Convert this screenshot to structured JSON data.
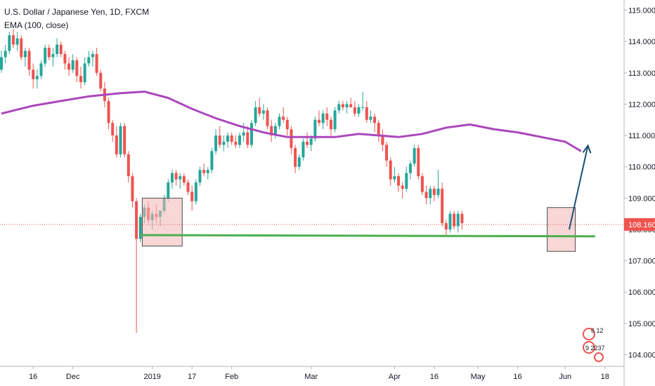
{
  "header": {
    "title": "U.S. Dollar / Japanese Yen, 1D, FXCM",
    "indicator": "EMA (100, close)"
  },
  "colors": {
    "up": "#26a69a",
    "down": "#ef5350",
    "ema": "#ab47bc",
    "support": "#4caf50",
    "arrow": "#1a5276",
    "box_fill": "#f4b6b6",
    "box_stroke": "#4a4a4a",
    "price_line": "#ef5350",
    "price_tag": "#ef5350"
  },
  "watermark": {
    "line1": "6  12",
    "line2": "9 2237"
  },
  "chart_data": {
    "type": "candlestick",
    "title": "U.S. Dollar / Japanese Yen, 1D, FXCM",
    "ylim": [
      103.8,
      115.3
    ],
    "y_ticks": [
      "115.000",
      "114.000",
      "113.000",
      "112.000",
      "111.000",
      "110.000",
      "109.000",
      "108.000",
      "107.000",
      "106.000",
      "105.000",
      "104.000"
    ],
    "x_ticks": [
      {
        "label": "16",
        "day": 8
      },
      {
        "label": "Dec",
        "day": 18
      },
      {
        "label": "2019",
        "day": 38
      },
      {
        "label": "17",
        "day": 48
      },
      {
        "label": "Feb",
        "day": 58
      },
      {
        "label": "Mar",
        "day": 78
      },
      {
        "label": "Apr",
        "day": 99
      },
      {
        "label": "16",
        "day": 109
      },
      {
        "label": "May",
        "day": 120
      },
      {
        "label": "16",
        "day": 130
      },
      {
        "label": "Jun",
        "day": 142
      },
      {
        "label": "18",
        "day": 152
      }
    ],
    "current_price": "108.160",
    "candles": [
      [
        113.1,
        113.7,
        113.0,
        113.5
      ],
      [
        113.5,
        113.9,
        113.3,
        113.7
      ],
      [
        113.7,
        114.3,
        113.6,
        114.2
      ],
      [
        114.2,
        114.4,
        113.8,
        113.9
      ],
      [
        113.9,
        114.3,
        113.7,
        114.1
      ],
      [
        114.1,
        114.2,
        113.4,
        113.5
      ],
      [
        113.5,
        113.8,
        113.2,
        113.7
      ],
      [
        113.7,
        113.8,
        112.9,
        113.1
      ],
      [
        113.1,
        113.3,
        112.5,
        112.8
      ],
      [
        112.8,
        113.1,
        112.5,
        112.9
      ],
      [
        112.9,
        113.4,
        112.8,
        113.3
      ],
      [
        113.3,
        113.9,
        113.2,
        113.8
      ],
      [
        113.8,
        113.9,
        113.4,
        113.5
      ],
      [
        113.5,
        113.8,
        113.2,
        113.6
      ],
      [
        113.6,
        114.1,
        113.5,
        113.9
      ],
      [
        113.9,
        114.0,
        113.5,
        113.6
      ],
      [
        113.6,
        113.7,
        113.1,
        113.3
      ],
      [
        113.3,
        113.5,
        112.9,
        113.1
      ],
      [
        113.1,
        113.6,
        113.0,
        113.4
      ],
      [
        113.4,
        113.5,
        112.7,
        112.9
      ],
      [
        112.9,
        113.2,
        112.5,
        112.7
      ],
      [
        112.7,
        113.5,
        112.6,
        113.3
      ],
      [
        113.3,
        113.7,
        113.2,
        113.5
      ],
      [
        113.5,
        113.7,
        113.2,
        113.6
      ],
      [
        113.6,
        113.8,
        112.9,
        113.0
      ],
      [
        113.0,
        113.1,
        112.4,
        112.5
      ],
      [
        112.5,
        112.7,
        111.9,
        112.1
      ],
      [
        112.1,
        112.2,
        111.2,
        111.4
      ],
      [
        111.4,
        111.5,
        110.8,
        111.0
      ],
      [
        111.0,
        111.3,
        110.3,
        110.4
      ],
      [
        110.4,
        111.4,
        110.3,
        111.3
      ],
      [
        111.3,
        111.4,
        110.3,
        110.4
      ],
      [
        110.4,
        110.5,
        109.5,
        109.7
      ],
      [
        109.7,
        109.8,
        108.7,
        108.9
      ],
      [
        108.9,
        109.0,
        104.7,
        107.7
      ],
      [
        107.7,
        108.5,
        107.6,
        108.4
      ],
      [
        108.4,
        108.8,
        108.2,
        108.7
      ],
      [
        108.7,
        108.9,
        108.2,
        108.3
      ],
      [
        108.3,
        108.6,
        108.0,
        108.5
      ],
      [
        108.5,
        108.8,
        108.2,
        108.4
      ],
      [
        108.4,
        108.6,
        108.1,
        108.6
      ],
      [
        108.6,
        109.1,
        108.5,
        109.0
      ],
      [
        109.0,
        109.6,
        108.9,
        109.5
      ],
      [
        109.5,
        109.9,
        109.3,
        109.8
      ],
      [
        109.8,
        109.9,
        109.4,
        109.6
      ],
      [
        109.6,
        109.8,
        109.3,
        109.7
      ],
      [
        109.7,
        109.8,
        109.4,
        109.5
      ],
      [
        109.5,
        109.6,
        109.1,
        109.2
      ],
      [
        109.2,
        109.4,
        108.6,
        108.9
      ],
      [
        108.9,
        109.6,
        108.8,
        109.5
      ],
      [
        109.5,
        110.0,
        109.4,
        109.9
      ],
      [
        109.9,
        110.1,
        109.7,
        109.8
      ],
      [
        109.8,
        110.0,
        109.6,
        109.9
      ],
      [
        109.9,
        110.6,
        109.8,
        110.5
      ],
      [
        110.5,
        111.2,
        110.4,
        111.0
      ],
      [
        111.0,
        111.3,
        110.6,
        110.7
      ],
      [
        110.7,
        111.0,
        110.5,
        110.8
      ],
      [
        110.8,
        111.1,
        110.6,
        111.0
      ],
      [
        111.0,
        111.1,
        110.7,
        110.8
      ],
      [
        110.8,
        111.0,
        110.6,
        110.7
      ],
      [
        110.7,
        111.1,
        110.6,
        111.0
      ],
      [
        111.0,
        111.4,
        110.8,
        111.1
      ],
      [
        111.1,
        111.3,
        110.6,
        110.7
      ],
      [
        110.7,
        111.5,
        110.6,
        111.4
      ],
      [
        111.4,
        112.1,
        111.3,
        111.9
      ],
      [
        111.9,
        112.2,
        111.6,
        111.7
      ],
      [
        111.7,
        112.0,
        111.5,
        111.8
      ],
      [
        111.8,
        111.9,
        111.2,
        111.3
      ],
      [
        111.3,
        111.5,
        110.8,
        111.0
      ],
      [
        111.0,
        111.4,
        110.9,
        111.3
      ],
      [
        111.3,
        111.7,
        111.2,
        111.6
      ],
      [
        111.6,
        111.9,
        111.4,
        111.5
      ],
      [
        111.5,
        111.6,
        111.0,
        111.2
      ],
      [
        111.2,
        111.3,
        110.4,
        110.6
      ],
      [
        110.6,
        110.7,
        109.8,
        110.0
      ],
      [
        110.0,
        110.4,
        109.9,
        110.3
      ],
      [
        110.3,
        110.9,
        110.2,
        110.8
      ],
      [
        110.8,
        111.1,
        110.6,
        110.7
      ],
      [
        110.7,
        111.0,
        110.5,
        110.9
      ],
      [
        110.9,
        111.6,
        110.8,
        111.5
      ],
      [
        111.5,
        111.8,
        111.3,
        111.4
      ],
      [
        111.4,
        111.8,
        111.2,
        111.7
      ],
      [
        111.7,
        111.9,
        111.3,
        111.5
      ],
      [
        111.5,
        111.6,
        111.0,
        111.2
      ],
      [
        111.2,
        111.9,
        111.1,
        111.8
      ],
      [
        111.8,
        112.1,
        111.7,
        112.0
      ],
      [
        112.0,
        112.1,
        111.8,
        111.9
      ],
      [
        111.9,
        112.1,
        111.7,
        112.0
      ],
      [
        112.0,
        112.2,
        111.9,
        111.9
      ],
      [
        111.9,
        112.1,
        111.6,
        111.7
      ],
      [
        111.7,
        112.0,
        111.6,
        111.9
      ],
      [
        111.9,
        112.4,
        111.8,
        111.9
      ],
      [
        111.9,
        112.1,
        111.4,
        111.5
      ],
      [
        111.5,
        111.8,
        111.4,
        111.6
      ],
      [
        111.6,
        111.7,
        111.1,
        111.4
      ],
      [
        111.4,
        111.5,
        110.8,
        111.0
      ],
      [
        111.0,
        111.2,
        110.5,
        110.7
      ],
      [
        110.7,
        110.8,
        110.0,
        110.2
      ],
      [
        110.2,
        110.3,
        109.4,
        109.6
      ],
      [
        109.6,
        110.0,
        109.5,
        109.7
      ],
      [
        109.7,
        109.8,
        109.2,
        109.4
      ],
      [
        109.4,
        109.5,
        109.0,
        109.3
      ],
      [
        109.3,
        110.0,
        109.2,
        109.8
      ],
      [
        109.8,
        110.2,
        109.6,
        110.1
      ],
      [
        110.1,
        110.7,
        110.0,
        110.6
      ],
      [
        110.6,
        110.7,
        109.6,
        109.7
      ],
      [
        109.7,
        109.8,
        109.1,
        109.2
      ],
      [
        109.2,
        109.4,
        108.8,
        109.0
      ],
      [
        109.0,
        109.4,
        108.8,
        109.3
      ],
      [
        109.3,
        109.4,
        108.9,
        109.1
      ],
      [
        109.1,
        109.9,
        109.0,
        109.3
      ],
      [
        109.3,
        109.5,
        108.1,
        108.2
      ],
      [
        108.2,
        108.3,
        107.8,
        108.0
      ],
      [
        108.0,
        108.6,
        107.9,
        108.5
      ],
      [
        108.5,
        108.6,
        108.0,
        108.1
      ],
      [
        108.1,
        108.6,
        107.9,
        108.5
      ],
      [
        108.5,
        108.6,
        108.0,
        108.2
      ]
    ],
    "ema": [
      [
        0,
        111.7
      ],
      [
        8,
        111.95
      ],
      [
        15,
        112.1
      ],
      [
        22,
        112.25
      ],
      [
        30,
        112.35
      ],
      [
        36,
        112.4
      ],
      [
        42,
        112.2
      ],
      [
        48,
        111.85
      ],
      [
        54,
        111.55
      ],
      [
        60,
        111.3
      ],
      [
        66,
        111.1
      ],
      [
        72,
        110.95
      ],
      [
        78,
        110.95
      ],
      [
        84,
        110.95
      ],
      [
        90,
        111.05
      ],
      [
        95,
        111.0
      ],
      [
        100,
        110.95
      ],
      [
        106,
        111.05
      ],
      [
        112,
        111.25
      ],
      [
        118,
        111.35
      ],
      [
        124,
        111.2
      ],
      [
        130,
        111.1
      ],
      [
        136,
        110.95
      ],
      [
        142,
        110.8
      ],
      [
        146,
        110.5
      ]
    ],
    "support_line": {
      "from_day": 37,
      "to_day": 146,
      "from_price": 107.82,
      "to_price": 107.78
    },
    "boxes": [
      {
        "from_day": 36,
        "to_day": 45,
        "low": 107.47,
        "high": 109.0
      },
      {
        "from_day": 138,
        "to_day": 144,
        "low": 107.3,
        "high": 108.7
      }
    ],
    "arrow": {
      "from_day": 143,
      "from_price": 108.0,
      "to_day": 147,
      "to_price": 110.5
    }
  }
}
